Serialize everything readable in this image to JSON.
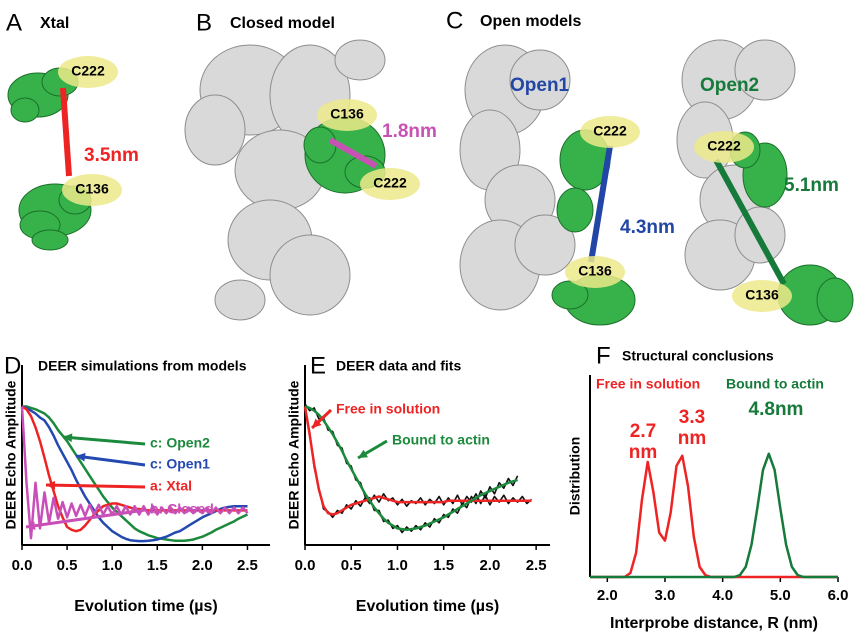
{
  "panels": [
    {
      "letter": "A",
      "title": "Xtal",
      "residues": [
        "C222",
        "C136"
      ],
      "distance": "3.5nm",
      "color": "#ee2424"
    },
    {
      "letter": "B",
      "title": "Closed model",
      "residues": [
        "C136",
        "C222"
      ],
      "distance": "1.8nm",
      "color": "#c752b4"
    },
    {
      "letter": "C",
      "title": "Open models",
      "models": [
        {
          "name": "Open1",
          "residues": [
            "C222",
            "C136"
          ],
          "distance": "4.3nm",
          "color": "#2246a6"
        },
        {
          "name": "Open2",
          "residues": [
            "C222",
            "C136"
          ],
          "distance": "5.1nm",
          "color": "#157a3a"
        }
      ]
    }
  ],
  "chart_data": [
    {
      "type": "line",
      "panel": "D",
      "title": "DEER simulations from models",
      "xlabel": "Evolution time (µs)",
      "ylabel": "DEER Echo Amplitude",
      "xlim": [
        0,
        2.75
      ],
      "ylim": [
        0,
        1.3
      ],
      "xticks": [
        {
          "value": 0,
          "label": "0.0"
        },
        0.5,
        {
          "value": 1,
          "label": "1.0"
        },
        1.5,
        {
          "value": 2,
          "label": "2.0"
        },
        2.5
      ],
      "x": [
        0,
        0.05,
        0.1,
        0.15,
        0.2,
        0.25,
        0.3,
        0.35,
        0.4,
        0.45,
        0.5,
        0.55,
        0.6,
        0.65,
        0.7,
        0.75,
        0.8,
        0.85,
        0.9,
        0.95,
        1,
        1.05,
        1.1,
        1.15,
        1.2,
        1.25,
        1.3,
        1.35,
        1.4,
        1.45,
        1.5,
        1.55,
        1.6,
        1.65,
        1.7,
        1.75,
        1.8,
        1.85,
        1.9,
        1.95,
        2,
        2.05,
        2.1,
        2.15,
        2.2,
        2.25,
        2.3,
        2.35,
        2.4,
        2.45,
        2.5
      ],
      "series": [
        {
          "name": "c: Open2",
          "color": "#1c8a3c",
          "values": [
            1,
            1,
            0.99,
            0.98,
            0.965,
            0.95,
            0.92,
            0.88,
            0.83,
            0.79,
            0.75,
            0.7,
            0.65,
            0.6,
            0.55,
            0.5,
            0.45,
            0.4,
            0.35,
            0.31,
            0.27,
            0.24,
            0.21,
            0.18,
            0.15,
            0.12,
            0.1,
            0.085,
            0.07,
            0.06,
            0.05,
            0.045,
            0.04,
            0.035,
            0.03,
            0.03,
            0.03,
            0.035,
            0.04,
            0.05,
            0.06,
            0.075,
            0.09,
            0.11,
            0.125,
            0.14,
            0.155,
            0.17,
            0.19,
            0.205,
            0.22
          ]
        },
        {
          "name": "c: Open1",
          "color": "#2449b0",
          "values": [
            1,
            0.99,
            0.97,
            0.95,
            0.92,
            0.9,
            0.85,
            0.79,
            0.72,
            0.66,
            0.6,
            0.54,
            0.47,
            0.41,
            0.35,
            0.3,
            0.25,
            0.2,
            0.16,
            0.13,
            0.1,
            0.08,
            0.06,
            0.045,
            0.035,
            0.03,
            0.028,
            0.028,
            0.03,
            0.035,
            0.04,
            0.05,
            0.06,
            0.075,
            0.09,
            0.1,
            0.12,
            0.14,
            0.16,
            0.18,
            0.2,
            0.215,
            0.23,
            0.245,
            0.26,
            0.27,
            0.275,
            0.28,
            0.28,
            0.28,
            0.28
          ]
        },
        {
          "name": "a: Xtal",
          "color": "#ee2424",
          "values": [
            1,
            0.98,
            0.93,
            0.85,
            0.75,
            0.63,
            0.5,
            0.39,
            0.28,
            0.2,
            0.13,
            0.11,
            0.1,
            0.11,
            0.14,
            0.18,
            0.22,
            0.25,
            0.28,
            0.29,
            0.3,
            0.3,
            0.29,
            0.28,
            0.27,
            0.26,
            0.26,
            0.255,
            0.25,
            0.25,
            0.25,
            0.25,
            0.25,
            0.25,
            0.25,
            0.25,
            0.25,
            0.25,
            0.25,
            0.25,
            0.25,
            0.25,
            0.25,
            0.25,
            0.25,
            0.25,
            0.25,
            0.25,
            0.25,
            0.25,
            0.25
          ]
        },
        {
          "name": "b: Closed",
          "color": "#c94fb8",
          "values": [
            1,
            0.45,
            0.05,
            0.45,
            0.12,
            0.38,
            0.16,
            0.34,
            0.19,
            0.31,
            0.2,
            0.3,
            0.21,
            0.29,
            0.21,
            0.29,
            0.22,
            0.29,
            0.22,
            0.28,
            0.22,
            0.28,
            0.22,
            0.28,
            0.22,
            0.28,
            0.22,
            0.28,
            0.22,
            0.28,
            0.22,
            0.27,
            0.23,
            0.27,
            0.23,
            0.27,
            0.23,
            0.27,
            0.23,
            0.27,
            0.23,
            0.27,
            0.23,
            0.27,
            0.23,
            0.27,
            0.23,
            0.27,
            0.23,
            0.27,
            0.23
          ]
        }
      ]
    },
    {
      "type": "line",
      "panel": "E",
      "title": "DEER data and fits",
      "xlabel": "Evolution time (µs)",
      "ylabel": "DEER Echo Amplitude",
      "xlim": [
        0,
        2.65
      ],
      "ylim": [
        0,
        1.3
      ],
      "xticks": [
        {
          "value": 0,
          "label": "0.0"
        },
        0.5,
        {
          "value": 1,
          "label": "1.0"
        },
        1.5,
        {
          "value": 2,
          "label": "2.0"
        },
        2.5
      ],
      "x": [
        0,
        0.05,
        0.1,
        0.15,
        0.2,
        0.25,
        0.3,
        0.35,
        0.4,
        0.45,
        0.5,
        0.55,
        0.6,
        0.65,
        0.7,
        0.75,
        0.8,
        0.85,
        0.9,
        0.95,
        1,
        1.05,
        1.1,
        1.15,
        1.2,
        1.25,
        1.3,
        1.35,
        1.4,
        1.45,
        1.5,
        1.55,
        1.6,
        1.65,
        1.7,
        1.75,
        1.8,
        1.85,
        1.9,
        1.95,
        2,
        2.05,
        2.1,
        2.15,
        2.2,
        2.25,
        2.3,
        2.35,
        2.4,
        2.45
      ],
      "series": [
        {
          "color": "#111111",
          "values": [
            1.02,
            0.97,
            0.99,
            0.91,
            0.92,
            0.83,
            0.82,
            0.72,
            0.7,
            0.59,
            0.57,
            0.47,
            0.45,
            0.35,
            0.34,
            0.25,
            0.25,
            0.17,
            0.18,
            0.12,
            0.14,
            0.09,
            0.13,
            0.1,
            0.14,
            0.11,
            0.16,
            0.13,
            0.19,
            0.16,
            0.22,
            0.2,
            0.26,
            0.23,
            0.3,
            0.27,
            0.35,
            0.3,
            0.39,
            0.34,
            0.42,
            0.37,
            0.45,
            0.41,
            0.48,
            0.43,
            0.5,
            null,
            null,
            null
          ]
        },
        {
          "color": "#111111",
          "values": [
            0.99,
            0.82,
            0.56,
            0.41,
            0.26,
            0.24,
            0.2,
            0.25,
            0.23,
            0.29,
            0.26,
            0.32,
            0.28,
            0.34,
            0.3,
            0.36,
            0.31,
            0.37,
            0.32,
            0.34,
            0.29,
            0.33,
            0.28,
            0.32,
            0.3,
            0.34,
            0.29,
            0.33,
            0.3,
            0.35,
            0.29,
            0.34,
            0.3,
            0.36,
            0.29,
            0.35,
            0.31,
            0.37,
            0.3,
            0.36,
            0.29,
            0.35,
            0.31,
            0.36,
            0.3,
            0.34,
            0.31,
            0.35,
            0.3,
            0.33
          ]
        },
        {
          "name": "Free in solution",
          "color": "#ee2424",
          "values": [
            1,
            0.8,
            0.58,
            0.4,
            0.28,
            0.23,
            0.22,
            0.23,
            0.25,
            0.27,
            0.29,
            0.3,
            0.31,
            0.32,
            0.33,
            0.34,
            0.35,
            0.34,
            0.33,
            0.32,
            0.31,
            0.31,
            0.31,
            0.31,
            0.31,
            0.31,
            0.31,
            0.31,
            0.31,
            0.31,
            0.31,
            0.32,
            0.32,
            0.32,
            0.32,
            0.32,
            0.32,
            0.32,
            0.32,
            0.32,
            0.32,
            0.32,
            0.32,
            0.32,
            0.32,
            0.32,
            0.32,
            0.32,
            0.32,
            0.32
          ]
        },
        {
          "name": "Bound to actin",
          "color": "#1c8a3c",
          "values": [
            1,
            0.99,
            0.97,
            0.94,
            0.9,
            0.85,
            0.8,
            0.74,
            0.68,
            0.61,
            0.55,
            0.49,
            0.43,
            0.37,
            0.32,
            0.27,
            0.23,
            0.19,
            0.16,
            0.14,
            0.12,
            0.115,
            0.11,
            0.115,
            0.12,
            0.13,
            0.14,
            0.155,
            0.17,
            0.185,
            0.2,
            0.22,
            0.24,
            0.26,
            0.28,
            0.3,
            0.32,
            0.34,
            0.36,
            0.375,
            0.39,
            0.405,
            0.42,
            0.435,
            0.45,
            0.46,
            0.47,
            null,
            null,
            null
          ]
        }
      ]
    },
    {
      "type": "line",
      "panel": "F",
      "title": "Structural conclusions",
      "xlabel": "Interprobe distance, R (nm)",
      "ylabel": "Distribution",
      "xlim": [
        1.7,
        6
      ],
      "ylim": [
        0,
        1
      ],
      "xticks": [
        {
          "value": 2,
          "label": "2.0"
        },
        {
          "value": 3,
          "label": "3.0"
        },
        {
          "value": 4,
          "label": "4.0"
        },
        {
          "value": 5,
          "label": "5.0"
        },
        {
          "value": 6,
          "label": "6.0"
        }
      ],
      "x": [
        1.7,
        1.8,
        1.9,
        2,
        2.1,
        2.2,
        2.3,
        2.4,
        2.5,
        2.6,
        2.7,
        2.8,
        2.9,
        3,
        3.1,
        3.2,
        3.3,
        3.4,
        3.5,
        3.6,
        3.7,
        3.8,
        3.9,
        4,
        4.1,
        4.2,
        4.3,
        4.4,
        4.5,
        4.6,
        4.7,
        4.8,
        4.9,
        5,
        5.1,
        5.2,
        5.3,
        5.4,
        5.5,
        5.6,
        5.7,
        5.8,
        5.9,
        6
      ],
      "series": [
        {
          "name": "Free in solution",
          "color": "#ee2424",
          "values": [
            0,
            0,
            0,
            0,
            0,
            0,
            0,
            0.02,
            0.12,
            0.38,
            0.57,
            0.42,
            0.22,
            0.18,
            0.32,
            0.55,
            0.6,
            0.45,
            0.2,
            0.05,
            0.01,
            0,
            0,
            0,
            0,
            0,
            0,
            0,
            0,
            0,
            0,
            0,
            0,
            0,
            0,
            0,
            0,
            0,
            0,
            0,
            0,
            0,
            0,
            0
          ]
        },
        {
          "name": "Bound to actin",
          "color": "#157a3a",
          "values": [
            0,
            0,
            0,
            0,
            0,
            0,
            0,
            0,
            0,
            0,
            0,
            0,
            0,
            0,
            0,
            0,
            0,
            0,
            0,
            0,
            0,
            0,
            0,
            0,
            0,
            0,
            0.01,
            0.05,
            0.16,
            0.34,
            0.53,
            0.61,
            0.53,
            0.34,
            0.16,
            0.05,
            0.01,
            0,
            0,
            0,
            0,
            0,
            0,
            0
          ]
        }
      ],
      "annotations": [
        {
          "lines": [
            "2.7",
            "nm"
          ],
          "color": "#ee2424"
        },
        {
          "lines": [
            "3.3",
            "nm"
          ],
          "color": "#ee2424"
        },
        {
          "lines": [
            "4.8nm"
          ],
          "color": "#157a3a"
        }
      ]
    }
  ]
}
